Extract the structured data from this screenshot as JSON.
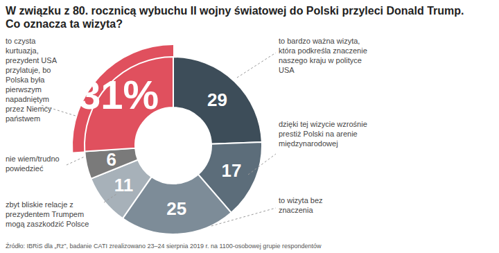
{
  "chart_data": {
    "type": "pie",
    "title": "W związku z 80. rocznicą wybuchu II wojny światowej do Polski przyleci Donald Trump.",
    "subtitle": "Co oznacza ta wizyta?",
    "categories": [
      "to bardzo ważna wizyta, która podkreśla znaczenie naszego kraju w polityce USA",
      "dzięki tej wizycie wzrośnie prestiż Polski na arenie międzynarodowej",
      "to wizyta bez znaczenia",
      "zbyt bliskie relacje z prezydentem Trumpem mogą zaszkodzić Polsce",
      "nie wiem/trudno powiedzieć",
      "to czysta kurtuazja, prezydent USA przylatuje, bo Polska była pierwszym napadniętym przez Niemcy państwem"
    ],
    "values": [
      29,
      17,
      25,
      11,
      6,
      31
    ],
    "value_labels": [
      "29",
      "17",
      "25",
      "11",
      "6",
      "31%"
    ],
    "colors": [
      "#3d4d59",
      "#5c6d7a",
      "#7d8c98",
      "#a7b1b9",
      "#7a7a7a",
      "#e0505e"
    ],
    "data_labels": true,
    "source": "Źródło: IBRiS dla „Rz”, badanie CATI zrealizowano 23–24 sierpnia 2019 r. na 1100-osobowej grupie respondentów"
  }
}
